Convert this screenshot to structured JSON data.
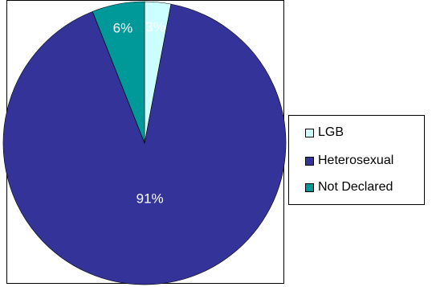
{
  "chart_data": {
    "type": "pie",
    "categories": [
      "LGB",
      "Heterosexual",
      "Not Declared"
    ],
    "values": [
      3,
      91,
      6
    ],
    "labels": [
      "3%",
      "91%",
      "6%"
    ],
    "colors": [
      "#CCFFFF",
      "#333399",
      "#009999"
    ],
    "label_color": "#FFFFFF",
    "legend_position": "right",
    "start_angle": "12 o'clock, clockwise"
  },
  "legend": {
    "items": [
      {
        "label": "LGB",
        "color": "#CCFFFF"
      },
      {
        "label": "Heterosexual",
        "color": "#333399"
      },
      {
        "label": "Not Declared",
        "color": "#009999"
      }
    ]
  }
}
